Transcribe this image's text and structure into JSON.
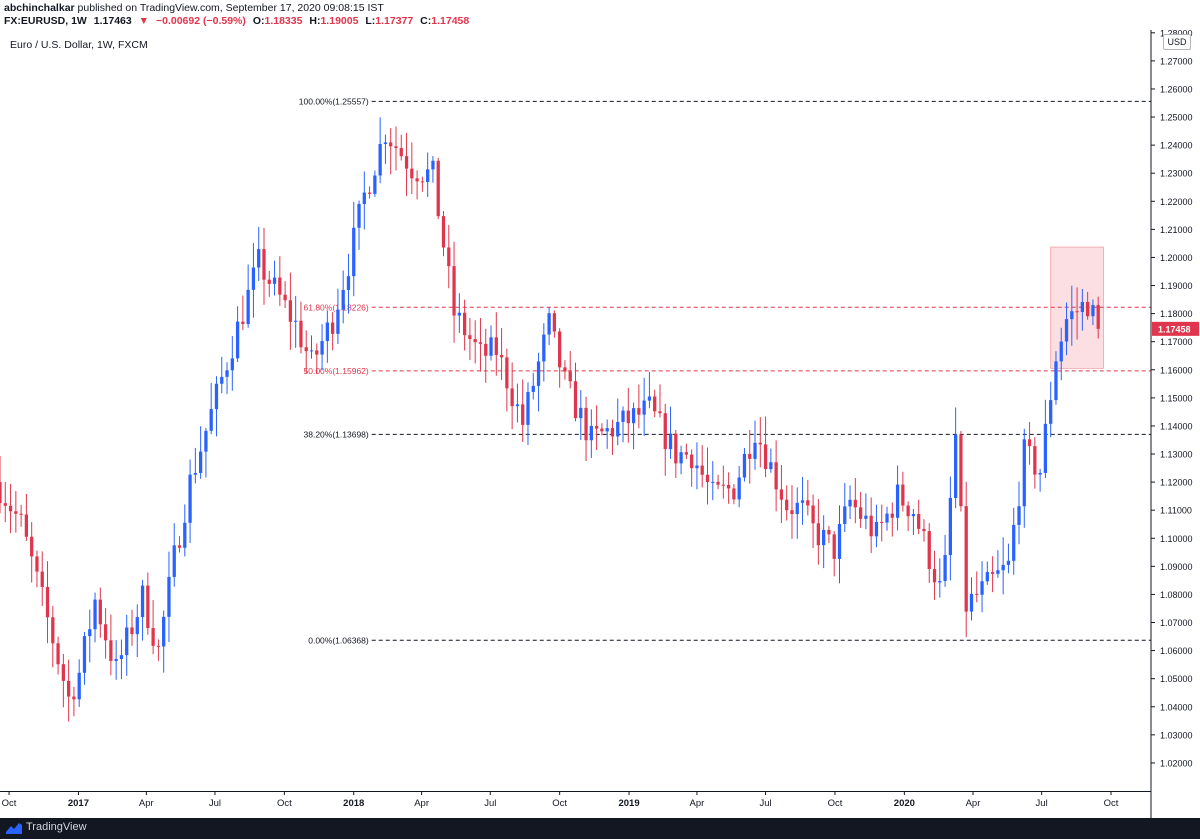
{
  "header": {
    "publisher": "abchinchalkar",
    "published_text": "published on TradingView.com, September 17, 2020 09:08:15 IST",
    "symbol": "FX:EURUSD, 1W",
    "last": "1.17463",
    "change_arrow": "▼",
    "change": "−0.00692 (−0.59%)",
    "open_label": "O:",
    "open": "1.18335",
    "high_label": "H:",
    "high": "1.19005",
    "low_label": "L:",
    "low": "1.17377",
    "close_label": "C:",
    "close": "1.17458"
  },
  "chart_title": "Euro / U.S. Dollar, 1W, FXCM",
  "currency": "USD",
  "footer": {
    "brand": "TradingView",
    "logo_icon": "tradingview-logo-icon"
  },
  "colors": {
    "up": "#2962ff",
    "down": "#e0364d",
    "fib_black": "#131722",
    "fib_red": "#e0364d",
    "highlight": "#f7c5cb",
    "price_badge": "#e0364d"
  },
  "chart_data": {
    "type": "candlestick",
    "title": "Euro / U.S. Dollar, 1W, FXCM",
    "ylim": [
      1.01,
      1.281
    ],
    "xlim": [
      "2016-09-19",
      "2020-11-23"
    ],
    "y_ticks": [
      "1.02000",
      "1.03000",
      "1.04000",
      "1.05000",
      "1.06000",
      "1.07000",
      "1.08000",
      "1.09000",
      "1.10000",
      "1.11000",
      "1.12000",
      "1.13000",
      "1.14000",
      "1.15000",
      "1.16000",
      "1.17000",
      "1.18000",
      "1.19000",
      "1.20000",
      "1.21000",
      "1.22000",
      "1.23000",
      "1.24000",
      "1.25000",
      "1.26000",
      "1.27000",
      "1.28000"
    ],
    "x_ticks": [
      {
        "label": "Oct",
        "date": "2016-10-01",
        "bold": false
      },
      {
        "label": "2017",
        "date": "2017-01-01",
        "bold": true
      },
      {
        "label": "Apr",
        "date": "2017-04-01",
        "bold": false
      },
      {
        "label": "Jul",
        "date": "2017-07-01",
        "bold": false
      },
      {
        "label": "Oct",
        "date": "2017-10-01",
        "bold": false
      },
      {
        "label": "2018",
        "date": "2018-01-01",
        "bold": true
      },
      {
        "label": "Apr",
        "date": "2018-04-01",
        "bold": false
      },
      {
        "label": "Jul",
        "date": "2018-07-01",
        "bold": false
      },
      {
        "label": "Oct",
        "date": "2018-10-01",
        "bold": false
      },
      {
        "label": "2019",
        "date": "2019-01-01",
        "bold": true
      },
      {
        "label": "Apr",
        "date": "2019-04-01",
        "bold": false
      },
      {
        "label": "Jul",
        "date": "2019-07-01",
        "bold": false
      },
      {
        "label": "Oct",
        "date": "2019-10-01",
        "bold": false
      },
      {
        "label": "2020",
        "date": "2020-01-01",
        "bold": true
      },
      {
        "label": "Apr",
        "date": "2020-04-01",
        "bold": false
      },
      {
        "label": "Jul",
        "date": "2020-07-01",
        "bold": false
      },
      {
        "label": "Oct",
        "date": "2020-10-01",
        "bold": false
      }
    ],
    "last_price": "1.17458",
    "fib_levels": [
      {
        "label": "100.00%(1.25557)",
        "value": 1.25557,
        "color": "black"
      },
      {
        "label": "61.80%(1.18226)",
        "value": 1.18226,
        "color": "red"
      },
      {
        "label": "50.00%(1.15962)",
        "value": 1.15962,
        "color": "red"
      },
      {
        "label": "38.20%(1.13698)",
        "value": 1.13698,
        "color": "black"
      },
      {
        "label": "0.00%(1.06368)",
        "value": 1.06368,
        "color": "black"
      }
    ],
    "fib_start_date": "2018-01-01",
    "highlight_box": {
      "x0": "2020-07-13",
      "x1": "2020-09-21",
      "y0": 1.1605,
      "y1": 1.2037
    },
    "anchors": [
      [
        "2016-09-19",
        1.118
      ],
      [
        "2016-10-17",
        1.105
      ],
      [
        "2016-11-14",
        1.078
      ],
      [
        "2016-12-19",
        1.043
      ],
      [
        "2017-01-02",
        1.052
      ],
      [
        "2017-01-23",
        1.078
      ],
      [
        "2017-02-20",
        1.053
      ],
      [
        "2017-03-27",
        1.079
      ],
      [
        "2017-04-17",
        1.06
      ],
      [
        "2017-05-08",
        1.093
      ],
      [
        "2017-05-29",
        1.12
      ],
      [
        "2017-07-24",
        1.169
      ],
      [
        "2017-08-28",
        1.198
      ],
      [
        "2017-10-16",
        1.176
      ],
      [
        "2017-11-06",
        1.162
      ],
      [
        "2017-12-04",
        1.178
      ],
      [
        "2017-12-25",
        1.198
      ],
      [
        "2018-01-15",
        1.222
      ],
      [
        "2018-02-12",
        1.245
      ],
      [
        "2018-03-19",
        1.232
      ],
      [
        "2018-04-16",
        1.229
      ],
      [
        "2018-05-14",
        1.18
      ],
      [
        "2018-06-18",
        1.165
      ],
      [
        "2018-07-09",
        1.167
      ],
      [
        "2018-08-13",
        1.141
      ],
      [
        "2018-09-17",
        1.176
      ],
      [
        "2018-10-08",
        1.155
      ],
      [
        "2018-11-12",
        1.135
      ],
      [
        "2018-12-17",
        1.14
      ],
      [
        "2019-01-28",
        1.146
      ],
      [
        "2019-03-04",
        1.13
      ],
      [
        "2019-03-25",
        1.13
      ],
      [
        "2019-04-22",
        1.115
      ],
      [
        "2019-05-20",
        1.118
      ],
      [
        "2019-06-17",
        1.139
      ],
      [
        "2019-07-29",
        1.112
      ],
      [
        "2019-08-19",
        1.11
      ],
      [
        "2019-09-02",
        1.103
      ],
      [
        "2019-09-30",
        1.096
      ],
      [
        "2019-10-21",
        1.113
      ],
      [
        "2019-11-25",
        1.101
      ],
      [
        "2019-12-23",
        1.115
      ],
      [
        "2020-01-13",
        1.11
      ],
      [
        "2020-02-17",
        1.082
      ],
      [
        "2020-02-24",
        1.09
      ],
      [
        "2020-03-09",
        1.136
      ],
      [
        "2020-03-23",
        1.076
      ],
      [
        "2020-04-20",
        1.083
      ],
      [
        "2020-05-18",
        1.09
      ],
      [
        "2020-06-08",
        1.13
      ],
      [
        "2020-06-29",
        1.124
      ],
      [
        "2020-07-20",
        1.165
      ],
      [
        "2020-08-03",
        1.178
      ],
      [
        "2020-08-31",
        1.184
      ],
      [
        "2020-09-14",
        1.1746
      ]
    ]
  }
}
